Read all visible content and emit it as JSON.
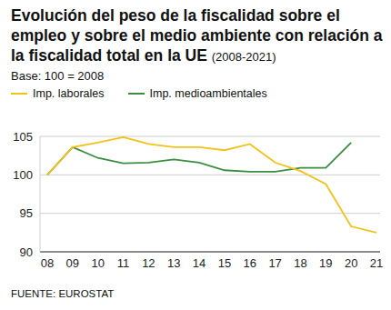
{
  "chart_data": {
    "type": "line",
    "title": "Evolución del peso de la fiscalidad sobre el empleo y sobre el medio ambiente con relación a la fiscalidad total en la UE",
    "title_note": "(2008-2021)",
    "subtitle": "Base: 100 = 2008",
    "source": "FUENTE: EUROSTAT",
    "categories": [
      "08",
      "09",
      "10",
      "11",
      "12",
      "13",
      "14",
      "15",
      "16",
      "17",
      "18",
      "19",
      "20",
      "21"
    ],
    "series": [
      {
        "name": "Imp. laborales",
        "color": "#f2c21b",
        "values": [
          100,
          103.6,
          104.2,
          104.9,
          104.0,
          103.6,
          103.6,
          103.2,
          104.0,
          101.6,
          100.5,
          98.8,
          93.3,
          92.5
        ]
      },
      {
        "name": "Imp. medioambientales",
        "color": "#3b8e3f",
        "values": [
          100,
          103.6,
          102.2,
          101.5,
          101.6,
          102.0,
          101.6,
          100.6,
          100.4,
          100.4,
          100.9,
          100.9,
          104.2,
          null
        ]
      }
    ],
    "ylim": [
      90,
      105
    ],
    "yticks": [
      90,
      95,
      100,
      105
    ],
    "grid": true
  }
}
